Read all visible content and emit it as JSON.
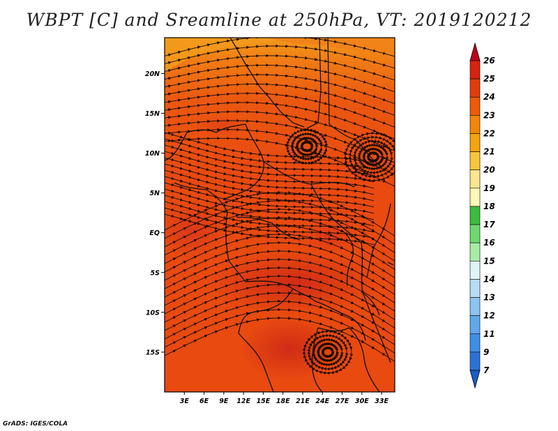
{
  "title": "WBPT [C] and Sreamline at 250hPa, VT: 2019120212",
  "footer": "GrADS: IGES/COLA",
  "map": {
    "lat_ticks": [
      "20N",
      "15N",
      "10N",
      "5N",
      "EQ",
      "5S",
      "10S",
      "15S"
    ],
    "lon_ticks": [
      "3E",
      "6E",
      "9E",
      "12E",
      "15E",
      "18E",
      "21E",
      "24E",
      "27E",
      "30E",
      "33E"
    ],
    "lat_range": [
      -20,
      24.5
    ],
    "lon_range": [
      0,
      35
    ]
  },
  "colorbar": {
    "labels": [
      "26",
      "25",
      "24",
      "23",
      "22",
      "21",
      "20",
      "19",
      "18",
      "17",
      "16",
      "15",
      "14",
      "13",
      "12",
      "11",
      "9",
      "7"
    ],
    "colors": [
      "#c0001a",
      "#d9220f",
      "#e23c0a",
      "#ee5a08",
      "#f3860a",
      "#f5a40f",
      "#f7c63a",
      "#fbe58d",
      "#fff7b5",
      "#3cbc3c",
      "#6ed86e",
      "#a6eca6",
      "#dff5f5",
      "#b6dcf5",
      "#8cc4f2",
      "#5fa8ec",
      "#3d8fe6",
      "#2a72d8",
      "#1a5bc8"
    ]
  },
  "colors": {
    "dominant_field": "#e84a10",
    "warm_core": "#d2301a",
    "north_band": "#f28a18",
    "boundaries": "#111111"
  }
}
